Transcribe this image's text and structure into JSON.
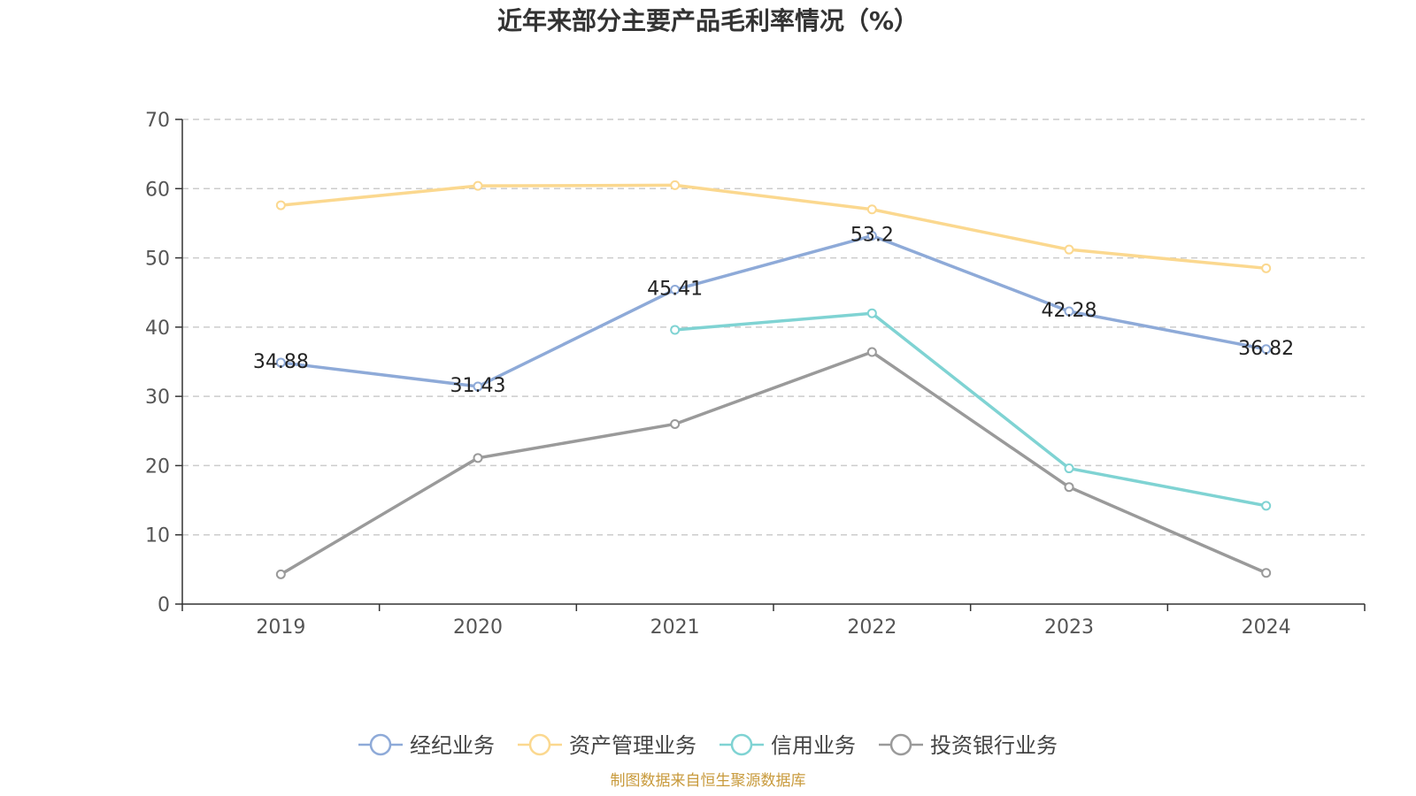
{
  "chart_data": {
    "type": "line",
    "title": "近年来部分主要产品毛利率情况（%）",
    "categories": [
      "2019",
      "2020",
      "2021",
      "2022",
      "2023",
      "2024"
    ],
    "ylim": [
      0,
      70
    ],
    "yticks": [
      "0",
      "10",
      "20",
      "30",
      "40",
      "50",
      "60",
      "70"
    ],
    "grid": true,
    "legend_position": "bottom",
    "series": [
      {
        "name": "经纪业务",
        "color": "#8eaad8",
        "values": [
          34.88,
          31.43,
          45.41,
          53.2,
          42.28,
          36.82
        ],
        "labels": [
          "34.88",
          "31.43",
          "45.41",
          "53.2",
          "42.28",
          "36.82"
        ]
      },
      {
        "name": "资产管理业务",
        "color": "#fbd88f",
        "values": [
          57.6,
          60.4,
          60.5,
          57.0,
          51.2,
          48.5
        ],
        "labels": null
      },
      {
        "name": "信用业务",
        "color": "#7fd3d3",
        "values": [
          null,
          null,
          39.6,
          42.0,
          19.6,
          14.2
        ],
        "labels": null
      },
      {
        "name": "投资银行业务",
        "color": "#9a9a9a",
        "values": [
          4.3,
          21.1,
          26.0,
          36.4,
          16.9,
          4.5
        ],
        "labels": null
      }
    ],
    "source": "制图数据来自恒生聚源数据库"
  }
}
